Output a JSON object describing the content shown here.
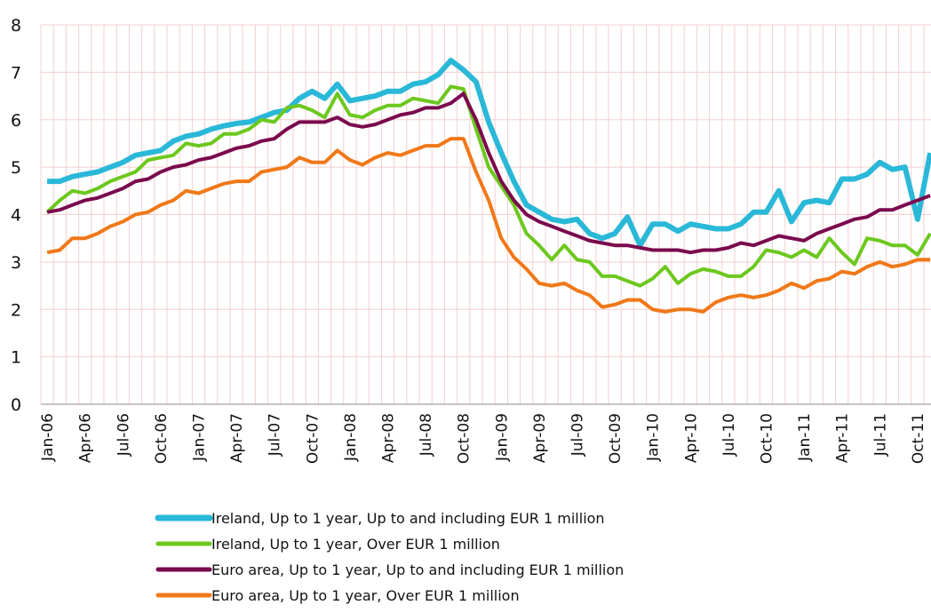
{
  "chart_data": {
    "type": "line",
    "categories": [
      "Jan-06",
      null,
      null,
      "Apr-06",
      null,
      null,
      "Jul-06",
      null,
      null,
      "Oct-06",
      null,
      null,
      "Jan-07",
      null,
      null,
      "Apr-07",
      null,
      null,
      "Jul-07",
      null,
      null,
      "Oct-07",
      null,
      null,
      "Jan-08",
      null,
      null,
      "Apr-08",
      null,
      null,
      "Jul-08",
      null,
      null,
      "Oct-08",
      null,
      null,
      "Jan-09",
      null,
      null,
      "Apr-09",
      null,
      null,
      "Jul-09",
      null,
      null,
      "Oct-09",
      null,
      null,
      "Jan-10",
      null,
      null,
      "Apr-10",
      null,
      null,
      "Jul-10",
      null,
      null,
      "Oct-10",
      null,
      null,
      "Jan-11",
      null,
      null,
      "Apr-11",
      null,
      null,
      "Jul-11",
      null,
      null,
      "Oct-11",
      null
    ],
    "series": [
      {
        "name": "Ireland, Up to 1 year, Up to and including EUR 1 million",
        "color": "#2ab8d8",
        "values": [
          4.7,
          4.7,
          4.8,
          4.85,
          4.9,
          5.0,
          5.1,
          5.25,
          5.3,
          5.35,
          5.55,
          5.65,
          5.7,
          5.8,
          5.87,
          5.92,
          5.95,
          6.05,
          6.15,
          6.2,
          6.45,
          6.6,
          6.45,
          6.75,
          6.4,
          6.45,
          6.5,
          6.6,
          6.6,
          6.75,
          6.8,
          6.95,
          7.25,
          7.05,
          6.8,
          5.95,
          5.3,
          4.7,
          4.2,
          4.05,
          3.9,
          3.85,
          3.9,
          3.6,
          3.5,
          3.6,
          3.95,
          3.35,
          3.8,
          3.8,
          3.65,
          3.8,
          3.75,
          3.7,
          3.7,
          3.8,
          4.05,
          4.05,
          4.5,
          3.85,
          4.25,
          4.3,
          4.25,
          4.75,
          4.75,
          4.85,
          5.1,
          4.95,
          5.0,
          3.9,
          5.3
        ]
      },
      {
        "name": "Ireland, Up to 1 year, Over EUR 1 million",
        "color": "#6cc81e",
        "values": [
          4.05,
          4.3,
          4.5,
          4.45,
          4.55,
          4.7,
          4.8,
          4.9,
          5.15,
          5.2,
          5.25,
          5.5,
          5.45,
          5.5,
          5.7,
          5.7,
          5.8,
          6.0,
          5.95,
          6.25,
          6.3,
          6.2,
          6.05,
          6.55,
          6.1,
          6.05,
          6.2,
          6.3,
          6.3,
          6.45,
          6.4,
          6.35,
          6.7,
          6.65,
          5.8,
          5.0,
          4.6,
          4.2,
          3.6,
          3.35,
          3.05,
          3.35,
          3.05,
          3.0,
          2.7,
          2.7,
          2.6,
          2.5,
          2.65,
          2.9,
          2.55,
          2.75,
          2.85,
          2.8,
          2.7,
          2.7,
          2.9,
          3.25,
          3.2,
          3.1,
          3.25,
          3.1,
          3.5,
          3.2,
          2.95,
          3.5,
          3.45,
          3.35,
          3.35,
          3.15,
          3.6
        ]
      },
      {
        "name": "Euro area, Up to 1 year, Up to and including EUR 1 million",
        "color": "#7a0a4e",
        "values": [
          4.05,
          4.1,
          4.2,
          4.3,
          4.35,
          4.45,
          4.55,
          4.7,
          4.75,
          4.9,
          5.0,
          5.05,
          5.15,
          5.2,
          5.3,
          5.4,
          5.45,
          5.55,
          5.6,
          5.8,
          5.95,
          5.95,
          5.95,
          6.05,
          5.9,
          5.85,
          5.9,
          6.0,
          6.1,
          6.15,
          6.25,
          6.25,
          6.35,
          6.55,
          6.0,
          5.3,
          4.7,
          4.3,
          4.0,
          3.85,
          3.75,
          3.65,
          3.55,
          3.45,
          3.4,
          3.35,
          3.35,
          3.3,
          3.25,
          3.25,
          3.25,
          3.2,
          3.25,
          3.25,
          3.3,
          3.4,
          3.35,
          3.45,
          3.55,
          3.5,
          3.45,
          3.6,
          3.7,
          3.8,
          3.9,
          3.95,
          4.1,
          4.1,
          4.2,
          4.3,
          4.4
        ]
      },
      {
        "name": "Euro area, Up to 1 year, Over EUR 1 million",
        "color": "#f07818",
        "values": [
          3.2,
          3.25,
          3.5,
          3.5,
          3.6,
          3.75,
          3.85,
          4.0,
          4.05,
          4.2,
          4.3,
          4.5,
          4.45,
          4.55,
          4.65,
          4.7,
          4.7,
          4.9,
          4.95,
          5.0,
          5.2,
          5.1,
          5.1,
          5.35,
          5.15,
          5.05,
          5.2,
          5.3,
          5.25,
          5.35,
          5.45,
          5.45,
          5.6,
          5.6,
          4.9,
          4.3,
          3.5,
          3.1,
          2.85,
          2.55,
          2.5,
          2.55,
          2.4,
          2.3,
          2.05,
          2.1,
          2.2,
          2.2,
          2.0,
          1.95,
          2.0,
          2.0,
          1.95,
          2.15,
          2.25,
          2.3,
          2.25,
          2.3,
          2.4,
          2.55,
          2.45,
          2.6,
          2.65,
          2.8,
          2.75,
          2.9,
          3.0,
          2.9,
          2.95,
          3.05,
          3.05
        ]
      }
    ],
    "ylim": [
      0,
      8
    ],
    "yticks": [
      0,
      1,
      2,
      3,
      4,
      5,
      6,
      7,
      8
    ],
    "grid": true
  }
}
